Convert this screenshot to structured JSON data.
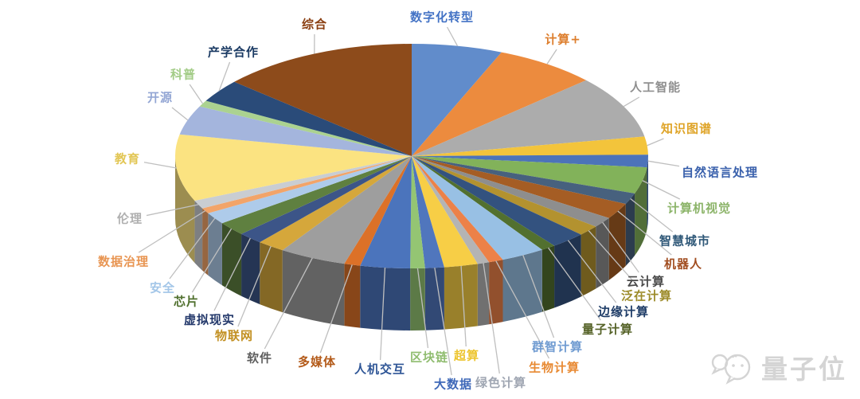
{
  "watermark": {
    "text": "量子位"
  },
  "chart_data": {
    "type": "pie",
    "style": "3d-pie",
    "title": "",
    "units": "percent (estimated from slice angles; no numeric labels shown)",
    "start_angle": "12 o'clock, clockwise",
    "legend_position": "outside labels with leader lines",
    "background": "#FFFFFF",
    "leader_line_color": "#BFBFBF",
    "slices": [
      {
        "label": "数字化转型",
        "value": 6.2,
        "color": "#618CCB",
        "label_color": "#4473C5"
      },
      {
        "label": "计算+",
        "value": 7.0,
        "color": "#EC8B3E",
        "label_color": "#DD7E2D"
      },
      {
        "label": "人工智能",
        "value": 9.0,
        "color": "#ACACAC",
        "label_color": "#8F8F8F"
      },
      {
        "label": "知识图谱",
        "value": 2.6,
        "color": "#F3C43B",
        "label_color": "#DFA428"
      },
      {
        "label": "自然语言处理",
        "value": 1.8,
        "color": "#4C73B9",
        "label_color": "#3A61AC"
      },
      {
        "label": "计算机视觉",
        "value": 3.8,
        "color": "#82B25A",
        "label_color": "#8CB469"
      },
      {
        "label": "智慧城市",
        "value": 1.6,
        "color": "#47617E",
        "label_color": "#2F5878"
      },
      {
        "label": "机器人",
        "value": 2.3,
        "color": "#A55D24",
        "label_color": "#A14D20"
      },
      {
        "label": "云计算",
        "value": 1.5,
        "color": "#8E8E8E",
        "label_color": "#4A4A4A"
      },
      {
        "label": "泛在计算",
        "value": 1.5,
        "color": "#B3922F",
        "label_color": "#9C8B29"
      },
      {
        "label": "边缘计算",
        "value": 2.4,
        "color": "#33527F",
        "label_color": "#1E3C67"
      },
      {
        "label": "量子计算",
        "value": 1.0,
        "color": "#52702F",
        "label_color": "#556227"
      },
      {
        "label": "群智计算",
        "value": 3.0,
        "color": "#98C0E4",
        "label_color": "#6F9BD1"
      },
      {
        "label": "生物计算",
        "value": 1.0,
        "color": "#EC8148",
        "label_color": "#E88A33"
      },
      {
        "label": "绿色计算",
        "value": 0.8,
        "color": "#B4B4B4",
        "label_color": "#9FA6B2"
      },
      {
        "label": "超算",
        "value": 2.3,
        "color": "#F7CE46",
        "label_color": "#EDC52F"
      },
      {
        "label": "大数据",
        "value": 1.3,
        "color": "#5076BD",
        "label_color": "#3E68B8"
      },
      {
        "label": "区块链",
        "value": 1.0,
        "color": "#94C573",
        "label_color": "#8FBC6F"
      },
      {
        "label": "人机交互",
        "value": 3.4,
        "color": "#4B74BC",
        "label_color": "#2E5596"
      },
      {
        "label": "多媒体",
        "value": 1.1,
        "color": "#DC7128",
        "label_color": "#B35A19"
      },
      {
        "label": "软件",
        "value": 4.6,
        "color": "#9E9E9E",
        "label_color": "#5E5E5E"
      },
      {
        "label": "物联网",
        "value": 1.9,
        "color": "#D5A73B",
        "label_color": "#C29022"
      },
      {
        "label": "虚拟现实",
        "value": 1.7,
        "color": "#3C5588",
        "label_color": "#24396B"
      },
      {
        "label": "芯片",
        "value": 2.0,
        "color": "#5F8040",
        "label_color": "#50702E"
      },
      {
        "label": "安全",
        "value": 1.7,
        "color": "#AECBEA",
        "label_color": "#A3C6E8"
      },
      {
        "label": "数据治理",
        "value": 0.8,
        "color": "#F2A469",
        "label_color": "#E89552"
      },
      {
        "label": "伦理",
        "value": 1.2,
        "color": "#C9CDD2",
        "label_color": "#B0B0B0"
      },
      {
        "label": "教育",
        "value": 9.6,
        "color": "#FBE381",
        "label_color": "#E2C654"
      },
      {
        "label": "开源",
        "value": 4.2,
        "color": "#A4B5DD",
        "label_color": "#93A6D4"
      },
      {
        "label": "科普",
        "value": 0.9,
        "color": "#ABD290",
        "label_color": "#A3CC87"
      },
      {
        "label": "产学合作",
        "value": 3.3,
        "color": "#2A4B79",
        "label_color": "#1A3A63"
      },
      {
        "label": "综合",
        "value": 13.5,
        "color": "#8D4B1B",
        "label_color": "#8A3E10"
      }
    ]
  }
}
